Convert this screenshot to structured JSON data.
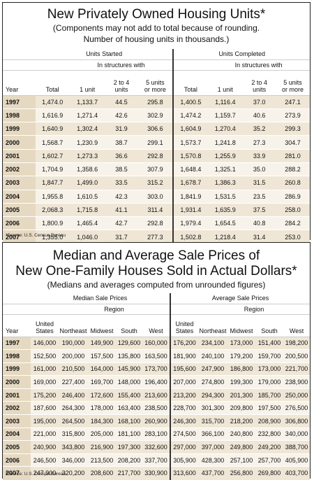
{
  "table1": {
    "title": "New Privately Owned Housing Units*",
    "subtitle1": "(Components may not add to total because of rounding.",
    "subtitle2": "Number of housing units in thousands.)",
    "group_started": "Units Started",
    "group_completed": "Units Completed",
    "sub_group": "In structures with",
    "col_year": "Year",
    "col_total": "Total",
    "col_1unit": "1 unit",
    "col_2to4_a": "2 to 4",
    "col_2to4_b": "units",
    "col_5plus_a": "5 units",
    "col_5plus_b": "or more",
    "rows": [
      [
        "1997",
        "1,474.0",
        "1,133.7",
        "44.5",
        "295.8",
        "1,400.5",
        "1,116.4",
        "37.0",
        "247.1"
      ],
      [
        "1998",
        "1,616.9",
        "1,271.4",
        "42.6",
        "302.9",
        "1,474.2",
        "1,159.7",
        "40.6",
        "273.9"
      ],
      [
        "1999",
        "1,640.9",
        "1,302.4",
        "31.9",
        "306.6",
        "1,604.9",
        "1,270.4",
        "35.2",
        "299.3"
      ],
      [
        "2000",
        "1,568.7",
        "1,230.9",
        "38.7",
        "299.1",
        "1,573.7",
        "1,241.8",
        "27.3",
        "304.7"
      ],
      [
        "2001",
        "1,602.7",
        "1,273.3",
        "36.6",
        "292.8",
        "1,570.8",
        "1,255.9",
        "33.9",
        "281.0"
      ],
      [
        "2002",
        "1,704.9",
        "1,358.6",
        "38.5",
        "307.9",
        "1,648.4",
        "1,325.1",
        "35.0",
        "288.2"
      ],
      [
        "2003",
        "1,847.7",
        "1,499.0",
        "33.5",
        "315.2",
        "1,678.7",
        "1,386.3",
        "31.5",
        "260.8"
      ],
      [
        "2004",
        "1,955.8",
        "1,610.5",
        "42.3",
        "303.0",
        "1,841.9",
        "1,531.5",
        "23.5",
        "286.9"
      ],
      [
        "2005",
        "2,068.3",
        "1,715.8",
        "41.1",
        "311.4",
        "1,931.4",
        "1,635.9",
        "37.5",
        "258.0"
      ],
      [
        "2006",
        "1,800.9",
        "1,465.4",
        "42.7",
        "292.8",
        "1,979.4",
        "1,654.5",
        "40.8",
        "284.2"
      ],
      [
        "2007",
        "1,355.0",
        "1,046.0",
        "31.7",
        "277.3",
        "1,502.8",
        "1,218.4",
        "31.4",
        "253.0"
      ]
    ],
    "source": "*Source: U.S. Census Bureau"
  },
  "table2": {
    "title1": "Median and Average Sale Prices of",
    "title2": "New One-Family Houses Sold in Actual Dollars*",
    "subtitle": "(Medians and averages computed from unrounded figures)",
    "group_median": "Median Sale Prices",
    "group_average": "Average Sale Prices",
    "sub_group": "Region",
    "col_year": "Year",
    "col_us_a": "United",
    "col_us_b": "States",
    "col_ne": "Northeast",
    "col_mw": "Midwest",
    "col_s": "South",
    "col_w": "West",
    "rows": [
      [
        "1997",
        "146,000",
        "190,000",
        "149,900",
        "129,600",
        "160,000",
        "176,200",
        "234,100",
        "173,000",
        "151,400",
        "198,200"
      ],
      [
        "1998",
        "152,500",
        "200,000",
        "157,500",
        "135,800",
        "163,500",
        "181,900",
        "240,100",
        "179,200",
        "159,700",
        "200,500"
      ],
      [
        "1999",
        "161,000",
        "210,500",
        "164,000",
        "145,900",
        "173,700",
        "195,600",
        "247,900",
        "186,800",
        "173,000",
        "221,700"
      ],
      [
        "2000",
        "169,000",
        "227,400",
        "169,700",
        "148,000",
        "196,400",
        "207,000",
        "274,800",
        "199,300",
        "179,000",
        "238,900"
      ],
      [
        "2001",
        "175,200",
        "246,400",
        "172,600",
        "155,400",
        "213,600",
        "213,200",
        "294,300",
        "201,300",
        "185,700",
        "250,000"
      ],
      [
        "2002",
        "187,600",
        "264,300",
        "178,000",
        "163,400",
        "238,500",
        "228,700",
        "301,300",
        "209,800",
        "197,500",
        "276,500"
      ],
      [
        "2003",
        "195,000",
        "264,500",
        "184,300",
        "168,100",
        "260,900",
        "246,300",
        "315,700",
        "218,200",
        "208,900",
        "306,800"
      ],
      [
        "2004",
        "221,000",
        "315,800",
        "205,000",
        "181,100",
        "283,100",
        "274,500",
        "366,100",
        "240,800",
        "232,800",
        "340,000"
      ],
      [
        "2005",
        "240,900",
        "343,800",
        "216,900",
        "197,300",
        "332,600",
        "297,000",
        "397,000",
        "249,800",
        "249,200",
        "388,700"
      ],
      [
        "2006",
        "246,500",
        "346,000",
        "213,500",
        "208,200",
        "337,700",
        "305,900",
        "428,300",
        "257,100",
        "257,700",
        "405,900"
      ],
      [
        "2007",
        "247,900",
        "320,200",
        "208,600",
        "217,700",
        "330,900",
        "313,600",
        "437,700",
        "256,800",
        "269,800",
        "403,700"
      ]
    ],
    "source": "*Source: U.S. Census Bureau"
  }
}
